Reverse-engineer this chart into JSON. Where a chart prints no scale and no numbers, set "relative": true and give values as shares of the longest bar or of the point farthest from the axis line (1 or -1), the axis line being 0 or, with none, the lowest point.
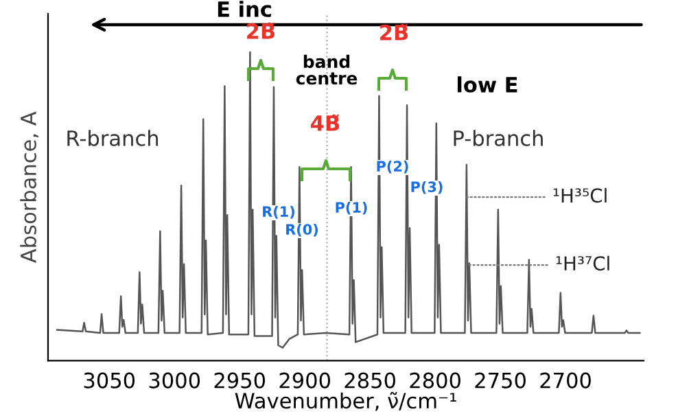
{
  "chart_data": {
    "type": "line",
    "relative": true,
    "xlabel": "Wavenumber, ν̃/cm⁻¹",
    "ylabel": "Absorbance, A",
    "xlim": [
      3097,
      2640
    ],
    "xticks": [
      3050,
      3000,
      2950,
      2900,
      2850,
      2800,
      2750,
      2700
    ],
    "grid": false,
    "legend": false,
    "tick_labels": "x",
    "series": [
      {
        "color": "#555555",
        "x": [
          3090,
          3070.5,
          3069.3,
          3068,
          3057,
          3055.9,
          3054.6,
          3042.4,
          3041.1,
          3040,
          3039,
          3037.6,
          3028.1,
          3026.8,
          3025.7,
          3024.7,
          3023.3,
          3012.3,
          3011,
          3009.9,
          3009,
          3007.6,
          2996.1,
          2994.8,
          2993.7,
          2992.7,
          2991.3,
          2979.2,
          2977.9,
          2976.8,
          2975.9,
          2974.5,
          2962.8,
          2961.5,
          2960.4,
          2959.5,
          2958.1,
          2943.3,
          2942,
          2940.9,
          2940,
          2938.6,
          2925.1,
          2923.8,
          2922.7,
          2921.8,
          2920.4,
          2917,
          2912,
          2905.4,
          2904.1,
          2903,
          2902.1,
          2900.7,
          2884,
          2865.8,
          2864.5,
          2863.4,
          2862.4,
          2861,
          2844.3,
          2843,
          2841.9,
          2841,
          2839.6,
          2822.9,
          2821.6,
          2820.5,
          2819.5,
          2818.1,
          2800.4,
          2799.1,
          2798,
          2797,
          2795.6,
          2777.2,
          2775.9,
          2774.8,
          2773.8,
          2772.4,
          2753,
          2751.7,
          2750.6,
          2749.6,
          2748.2,
          2729.3,
          2728,
          2726.9,
          2726,
          2724.6,
          2705.1,
          2703.8,
          2702.7,
          2701.7,
          2700.3,
          2679.8,
          2678.5,
          2677.2,
          2654.5,
          2653.2,
          2651.9,
          2643
        ],
        "values": [
          0.1,
          0.095,
          0.123,
          0.095,
          0.09,
          0.151,
          0.09,
          0.09,
          0.209,
          0.11,
          0.132,
          0.09,
          0.09,
          0.287,
          0.12,
          0.182,
          0.09,
          0.09,
          0.42,
          0.13,
          0.227,
          0.09,
          0.09,
          0.568,
          0.14,
          0.313,
          0.09,
          0.09,
          0.783,
          0.15,
          0.39,
          0.085,
          0.09,
          0.89,
          0.15,
          0.472,
          0.085,
          0.085,
          1.0,
          0.15,
          0.49,
          0.08,
          0.08,
          0.887,
          0.14,
          0.405,
          0.05,
          0.042,
          0.07,
          0.085,
          0.628,
          0.13,
          0.294,
          0.085,
          0.09,
          0.085,
          0.628,
          0.12,
          0.261,
          0.06,
          0.085,
          0.858,
          0.14,
          0.368,
          0.09,
          0.09,
          0.828,
          0.14,
          0.43,
          0.09,
          0.09,
          0.769,
          0.14,
          0.376,
          0.09,
          0.09,
          0.635,
          0.13,
          0.316,
          0.09,
          0.09,
          0.49,
          0.12,
          0.242,
          0.09,
          0.09,
          0.327,
          0.11,
          0.168,
          0.09,
          0.09,
          0.22,
          0.11,
          0.131,
          0.09,
          0.09,
          0.146,
          0.09,
          0.09,
          0.098,
          0.09,
          0.09
        ]
      }
    ],
    "ref_lines": [
      {
        "axis": "x",
        "value": 2883,
        "color": "#aaaaaa",
        "line_style": "dotted"
      }
    ],
    "annotations": [
      "E inc",
      "2B̃",
      "2B̃",
      "band\ncentre",
      "4B̃",
      "low E",
      "R-branch",
      "P-branch",
      "R(1)",
      "R(0)",
      "P(1)",
      "P(2)",
      "P(3)",
      {
        "text": "¹H³⁵Cl",
        "x": 2775.9,
        "y": 0.53
      },
      {
        "text": "¹H³⁷Cl",
        "x": 2773.8,
        "y": 0.31
      }
    ]
  }
}
